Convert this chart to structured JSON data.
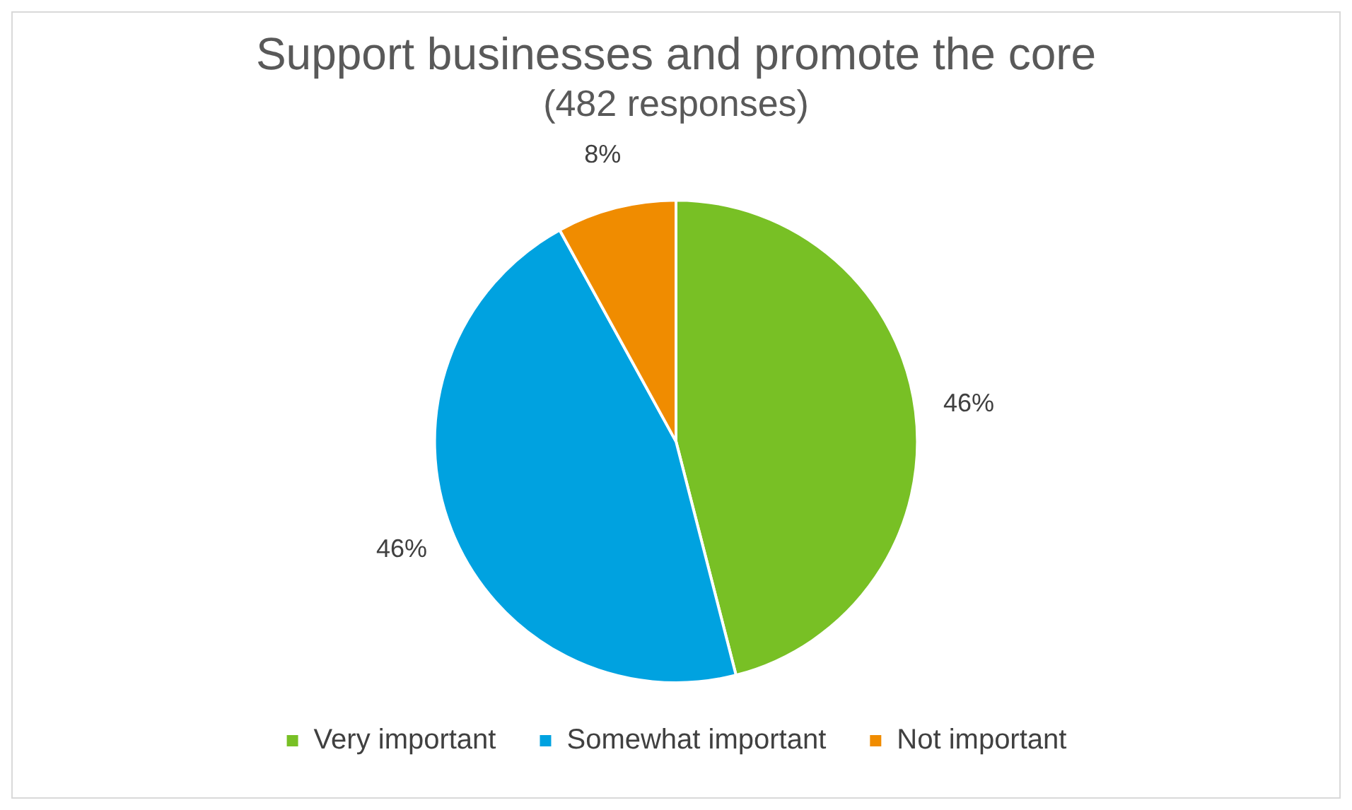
{
  "chart_data": {
    "type": "pie",
    "title": "Support businesses and promote the core",
    "subtitle": "(482 responses)",
    "categories": [
      "Very important",
      "Somewhat important",
      "Not important"
    ],
    "values": [
      46,
      46,
      8
    ],
    "colors": [
      "#78c025",
      "#00a2e0",
      "#f08c00"
    ],
    "value_labels": [
      "46%",
      "46%",
      "8%"
    ],
    "legend": "bottom"
  }
}
